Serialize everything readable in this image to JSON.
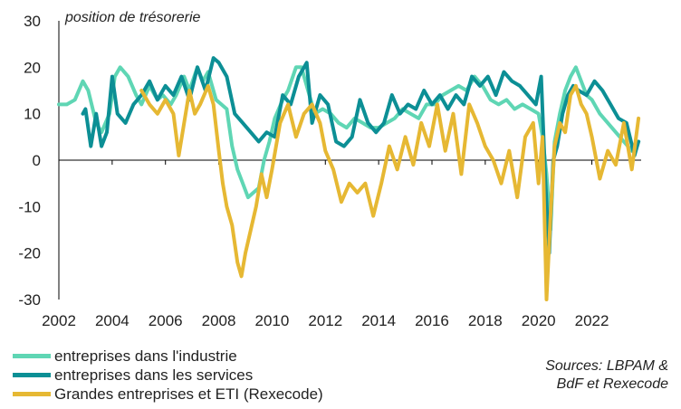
{
  "chart_data": {
    "type": "line",
    "ylabel": "position de trésorerie",
    "ylim": [
      -30,
      30
    ],
    "yticks": [
      30,
      20,
      10,
      0,
      -10,
      -20,
      -30
    ],
    "xlim": [
      2002.0,
      2023.85
    ],
    "xticks": [
      "2002",
      "2004",
      "2006",
      "2008",
      "2010",
      "2012",
      "2014",
      "2016",
      "2018",
      "2020",
      "2022"
    ],
    "xtick_values": [
      2002,
      2004,
      2006,
      2008,
      2010,
      2012,
      2014,
      2016,
      2018,
      2020,
      2022
    ],
    "sources": [
      "Sources: LBPAM &",
      "BdF et Rexecode"
    ],
    "series": [
      {
        "name": "entreprises dans l'industrie",
        "color": "#5fd6b4",
        "x": [
          2002.0,
          2002.3,
          2002.6,
          2002.9,
          2003.1,
          2003.4,
          2003.6,
          2003.9,
          2004.1,
          2004.3,
          2004.6,
          2004.9,
          2005.1,
          2005.4,
          2005.7,
          2005.9,
          2006.2,
          2006.4,
          2006.7,
          2006.9,
          2007.2,
          2007.4,
          2007.6,
          2007.9,
          2008.1,
          2008.3,
          2008.5,
          2008.7,
          2008.9,
          2009.1,
          2009.3,
          2009.5,
          2009.7,
          2009.9,
          2010.1,
          2010.4,
          2010.6,
          2010.9,
          2011.1,
          2011.4,
          2011.6,
          2011.9,
          2012.2,
          2012.5,
          2012.8,
          2013.1,
          2013.4,
          2013.7,
          2014.0,
          2014.3,
          2014.6,
          2014.9,
          2015.2,
          2015.5,
          2015.8,
          2016.1,
          2016.4,
          2016.7,
          2017.0,
          2017.3,
          2017.6,
          2017.9,
          2018.2,
          2018.5,
          2018.8,
          2019.1,
          2019.4,
          2019.7,
          2020.0,
          2020.15,
          2020.3,
          2020.45,
          2020.6,
          2020.8,
          2021.0,
          2021.2,
          2021.4,
          2021.6,
          2021.8,
          2022.0,
          2022.3,
          2022.6,
          2022.9,
          2023.2,
          2023.5,
          2023.75
        ],
        "y": [
          12,
          12,
          13,
          17,
          15,
          8,
          6,
          10,
          18,
          20,
          18,
          14,
          12,
          16,
          13,
          14,
          12,
          14,
          18,
          15,
          20,
          17,
          19,
          13,
          12,
          11,
          3,
          -2,
          -5,
          -8,
          -7,
          -6,
          0,
          4,
          9,
          13,
          15,
          20,
          20,
          14,
          10,
          11,
          10,
          8,
          7,
          9,
          8,
          7,
          7,
          8,
          9,
          11,
          10,
          9,
          12,
          12,
          14,
          15,
          16,
          15,
          18,
          16,
          13,
          12,
          13,
          11,
          12,
          11,
          10,
          5,
          -3,
          -15,
          4,
          10,
          15,
          18,
          20,
          17,
          14,
          13,
          10,
          8,
          6,
          4,
          2,
          4
        ]
      },
      {
        "name": "entreprises dans les services",
        "color": "#0c8f95",
        "x": [
          2002.9,
          2003.0,
          2003.2,
          2003.4,
          2003.6,
          2003.8,
          2004.0,
          2004.2,
          2004.5,
          2004.8,
          2005.1,
          2005.4,
          2005.7,
          2006.0,
          2006.3,
          2006.6,
          2006.9,
          2007.2,
          2007.5,
          2007.8,
          2008.0,
          2008.3,
          2008.6,
          2008.9,
          2009.2,
          2009.5,
          2009.8,
          2010.1,
          2010.4,
          2010.7,
          2011.0,
          2011.3,
          2011.5,
          2011.8,
          2012.1,
          2012.4,
          2012.7,
          2013.0,
          2013.3,
          2013.6,
          2013.9,
          2014.2,
          2014.5,
          2014.8,
          2015.1,
          2015.4,
          2015.7,
          2016.0,
          2016.3,
          2016.6,
          2016.9,
          2017.2,
          2017.5,
          2017.8,
          2018.1,
          2018.4,
          2018.7,
          2019.0,
          2019.3,
          2019.6,
          2019.9,
          2020.1,
          2020.25,
          2020.4,
          2020.55,
          2020.7,
          2020.9,
          2021.1,
          2021.3,
          2021.5,
          2021.8,
          2022.1,
          2022.4,
          2022.7,
          2023.0,
          2023.3,
          2023.6,
          2023.75
        ],
        "y": [
          10,
          11,
          3,
          10,
          3,
          6,
          18,
          10,
          8,
          12,
          14,
          17,
          13,
          16,
          14,
          18,
          13,
          20,
          15,
          22,
          21,
          18,
          10,
          8,
          6,
          4,
          6,
          5,
          14,
          12,
          18,
          21,
          8,
          14,
          12,
          4,
          3,
          5,
          13,
          8,
          6,
          8,
          14,
          10,
          12,
          11,
          15,
          12,
          14,
          11,
          14,
          12,
          18,
          16,
          18,
          14,
          19,
          17,
          16,
          14,
          12,
          18,
          -4,
          -20,
          0,
          3,
          10,
          14,
          16,
          15,
          14,
          17,
          15,
          12,
          9,
          8,
          1,
          4
        ]
      },
      {
        "name": "Grandes entreprises et ETI (Rexecode)",
        "color": "#e6b833",
        "x": [
          2005.1,
          2005.4,
          2005.7,
          2006.0,
          2006.3,
          2006.5,
          2006.7,
          2006.9,
          2007.1,
          2007.3,
          2007.6,
          2007.8,
          2008.0,
          2008.15,
          2008.3,
          2008.5,
          2008.7,
          2008.85,
          2009.0,
          2009.2,
          2009.4,
          2009.6,
          2009.8,
          2010.0,
          2010.3,
          2010.6,
          2010.9,
          2011.2,
          2011.5,
          2011.8,
          2012.0,
          2012.3,
          2012.6,
          2012.9,
          2013.2,
          2013.5,
          2013.8,
          2014.1,
          2014.4,
          2014.7,
          2015.0,
          2015.3,
          2015.6,
          2015.9,
          2016.2,
          2016.5,
          2016.8,
          2017.1,
          2017.4,
          2017.7,
          2018.0,
          2018.3,
          2018.6,
          2018.9,
          2019.2,
          2019.5,
          2019.8,
          2020.0,
          2020.15,
          2020.3,
          2020.45,
          2020.6,
          2020.8,
          2021.0,
          2021.2,
          2021.4,
          2021.6,
          2021.8,
          2022.0,
          2022.3,
          2022.6,
          2022.9,
          2023.2,
          2023.5,
          2023.75
        ],
        "y": [
          15,
          12,
          10,
          13,
          10,
          1,
          8,
          15,
          10,
          12,
          16,
          12,
          2,
          -5,
          -10,
          -14,
          -22,
          -25,
          -20,
          -15,
          -10,
          -3,
          -8,
          -2,
          8,
          12,
          5,
          10,
          12,
          8,
          2,
          -2,
          -9,
          -5,
          -7,
          -5,
          -12,
          -5,
          3,
          -2,
          5,
          -1,
          8,
          3,
          12,
          2,
          10,
          -3,
          12,
          8,
          3,
          0,
          -5,
          2,
          -8,
          5,
          8,
          -5,
          5,
          -30,
          -12,
          3,
          8,
          6,
          14,
          16,
          12,
          10,
          5,
          -4,
          2,
          -1,
          8,
          -2,
          9
        ]
      }
    ]
  }
}
